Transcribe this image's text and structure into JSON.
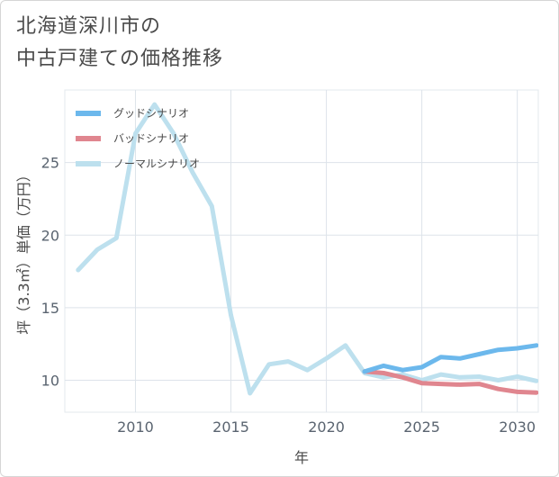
{
  "title_lines": [
    "北海道深川市の",
    "中古戸建ての価格推移"
  ],
  "chart_data": {
    "type": "line",
    "title": "北海道深川市の中古戸建ての価格推移",
    "xlabel": "年",
    "ylabel": "坪（3.3㎡）単価（万円）",
    "xlim": [
      2006.3,
      2031.1
    ],
    "ylim": [
      7.8,
      30.0
    ],
    "xticks": [
      2010,
      2015,
      2020,
      2025,
      2030
    ],
    "xtick_labels": [
      "2010",
      "2015",
      "2020",
      "2025",
      "2030"
    ],
    "yticks": [
      10,
      15,
      20,
      25
    ],
    "ytick_labels": [
      "10",
      "15",
      "20",
      "25"
    ],
    "grid": true,
    "legend_position": "top-left",
    "series": [
      {
        "name": "グッドシナリオ",
        "color": "#6cb8ec",
        "x": [
          2022,
          2023,
          2024,
          2025,
          2026,
          2027,
          2028,
          2029,
          2030,
          2031
        ],
        "y": [
          10.6,
          11.0,
          10.7,
          10.9,
          11.6,
          11.5,
          11.8,
          12.1,
          12.2,
          12.4
        ]
      },
      {
        "name": "バッドシナリオ",
        "color": "#e0868f",
        "x": [
          2022,
          2023,
          2024,
          2025,
          2026,
          2027,
          2028,
          2029,
          2030,
          2031
        ],
        "y": [
          10.6,
          10.5,
          10.2,
          9.8,
          9.75,
          9.7,
          9.75,
          9.4,
          9.2,
          9.15
        ]
      },
      {
        "name": "ノーマルシナリオ",
        "color": "#bde0ee",
        "x": [
          2007,
          2008,
          2009,
          2010,
          2011,
          2012,
          2013,
          2014,
          2015,
          2016,
          2017,
          2018,
          2019,
          2020,
          2021,
          2022,
          2023,
          2024,
          2025,
          2026,
          2027,
          2028,
          2029,
          2030,
          2031
        ],
        "y": [
          17.6,
          19.0,
          19.8,
          27.0,
          29.0,
          27.0,
          24.3,
          22.0,
          14.5,
          9.1,
          11.1,
          11.3,
          10.7,
          11.5,
          12.4,
          10.5,
          10.2,
          10.4,
          10.0,
          10.4,
          10.2,
          10.25,
          10.0,
          10.25,
          9.95
        ]
      }
    ]
  }
}
